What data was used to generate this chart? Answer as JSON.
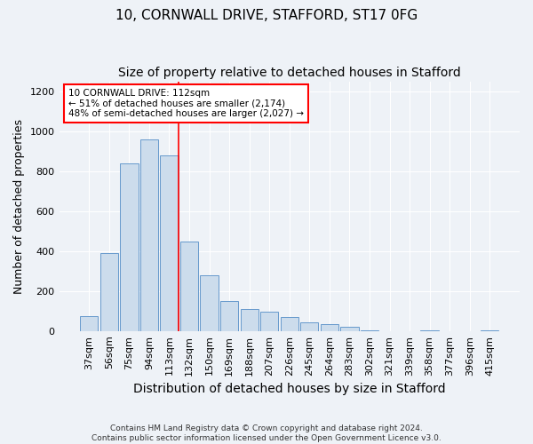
{
  "title": "10, CORNWALL DRIVE, STAFFORD, ST17 0FG",
  "subtitle": "Size of property relative to detached houses in Stafford",
  "xlabel": "Distribution of detached houses by size in Stafford",
  "ylabel": "Number of detached properties",
  "categories": [
    "37sqm",
    "56sqm",
    "75sqm",
    "94sqm",
    "113sqm",
    "132sqm",
    "150sqm",
    "169sqm",
    "188sqm",
    "207sqm",
    "226sqm",
    "245sqm",
    "264sqm",
    "283sqm",
    "302sqm",
    "321sqm",
    "339sqm",
    "358sqm",
    "377sqm",
    "396sqm",
    "415sqm"
  ],
  "values": [
    75,
    390,
    840,
    960,
    880,
    450,
    280,
    150,
    110,
    95,
    70,
    45,
    35,
    20,
    5,
    0,
    0,
    5,
    0,
    0,
    5
  ],
  "bar_color": "#ccdcec",
  "bar_edge_color": "#6699cc",
  "red_line_index": 4,
  "annotation_text": "10 CORNWALL DRIVE: 112sqm\n← 51% of detached houses are smaller (2,174)\n48% of semi-detached houses are larger (2,027) →",
  "ylim": [
    0,
    1250
  ],
  "yticks": [
    0,
    200,
    400,
    600,
    800,
    1000,
    1200
  ],
  "footer_text": "Contains HM Land Registry data © Crown copyright and database right 2024.\nContains public sector information licensed under the Open Government Licence v3.0.",
  "background_color": "#eef2f7",
  "title_fontsize": 11,
  "subtitle_fontsize": 10,
  "tick_fontsize": 8,
  "ylabel_fontsize": 9,
  "xlabel_fontsize": 10
}
